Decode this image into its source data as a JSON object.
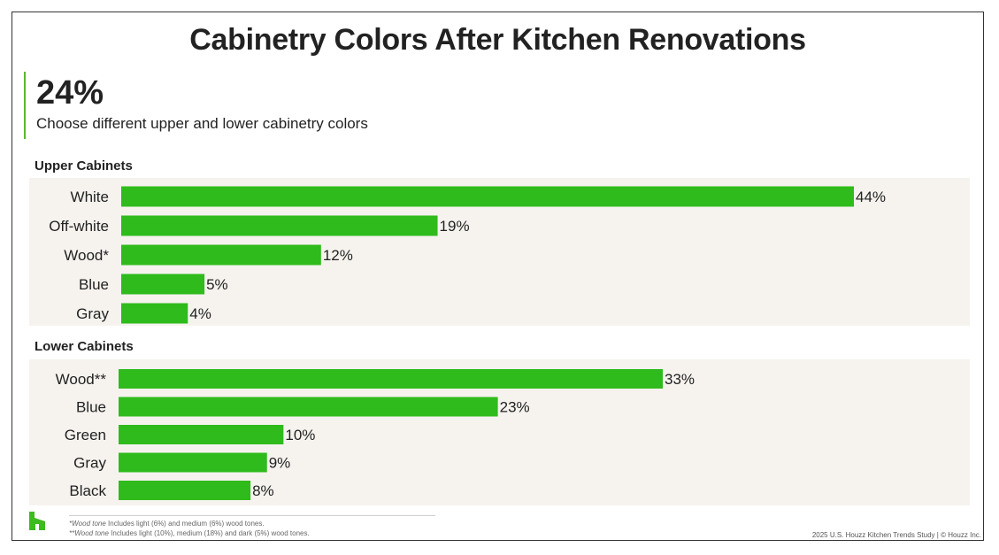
{
  "title": "Cabinetry Colors After Kitchen Renovations",
  "highlight": {
    "value": "24%",
    "caption": "Choose different upper and lower cabinetry colors"
  },
  "colors": {
    "bar": "#2fbb1b",
    "accent": "#5ab82a",
    "panel": "#f6f3ef",
    "logo": "#3dbb1f"
  },
  "chart_data": [
    {
      "type": "bar",
      "orientation": "horizontal",
      "title": "Upper Cabinets",
      "categories": [
        "White",
        "Off-white",
        "Wood*",
        "Blue",
        "Gray"
      ],
      "values": [
        44,
        19,
        12,
        5,
        4
      ],
      "labels": [
        "44%",
        "19%",
        "12%",
        "5%",
        "4%"
      ],
      "unit": "%",
      "xlim": [
        0,
        44
      ]
    },
    {
      "type": "bar",
      "orientation": "horizontal",
      "title": "Lower Cabinets",
      "categories": [
        "Wood**",
        "Blue",
        "Green",
        "Gray",
        "Black"
      ],
      "values": [
        33,
        23,
        10,
        9,
        8
      ],
      "labels": [
        "33%",
        "23%",
        "10%",
        "9%",
        "8%"
      ],
      "unit": "%",
      "xlim": [
        0,
        44
      ]
    }
  ],
  "footnotes": {
    "f1_term": "*Wood tone",
    "f1_text": " Includes light (6%) and medium (6%) wood tones.",
    "f2_term": "**Wood tone",
    "f2_text": " Includes light (10%), medium (18%) and dark (5%) wood tones."
  },
  "source": "2025 U.S. Houzz Kitchen Trends Study  |  © Houzz Inc.",
  "logo_icon": "houzz-logo-icon"
}
